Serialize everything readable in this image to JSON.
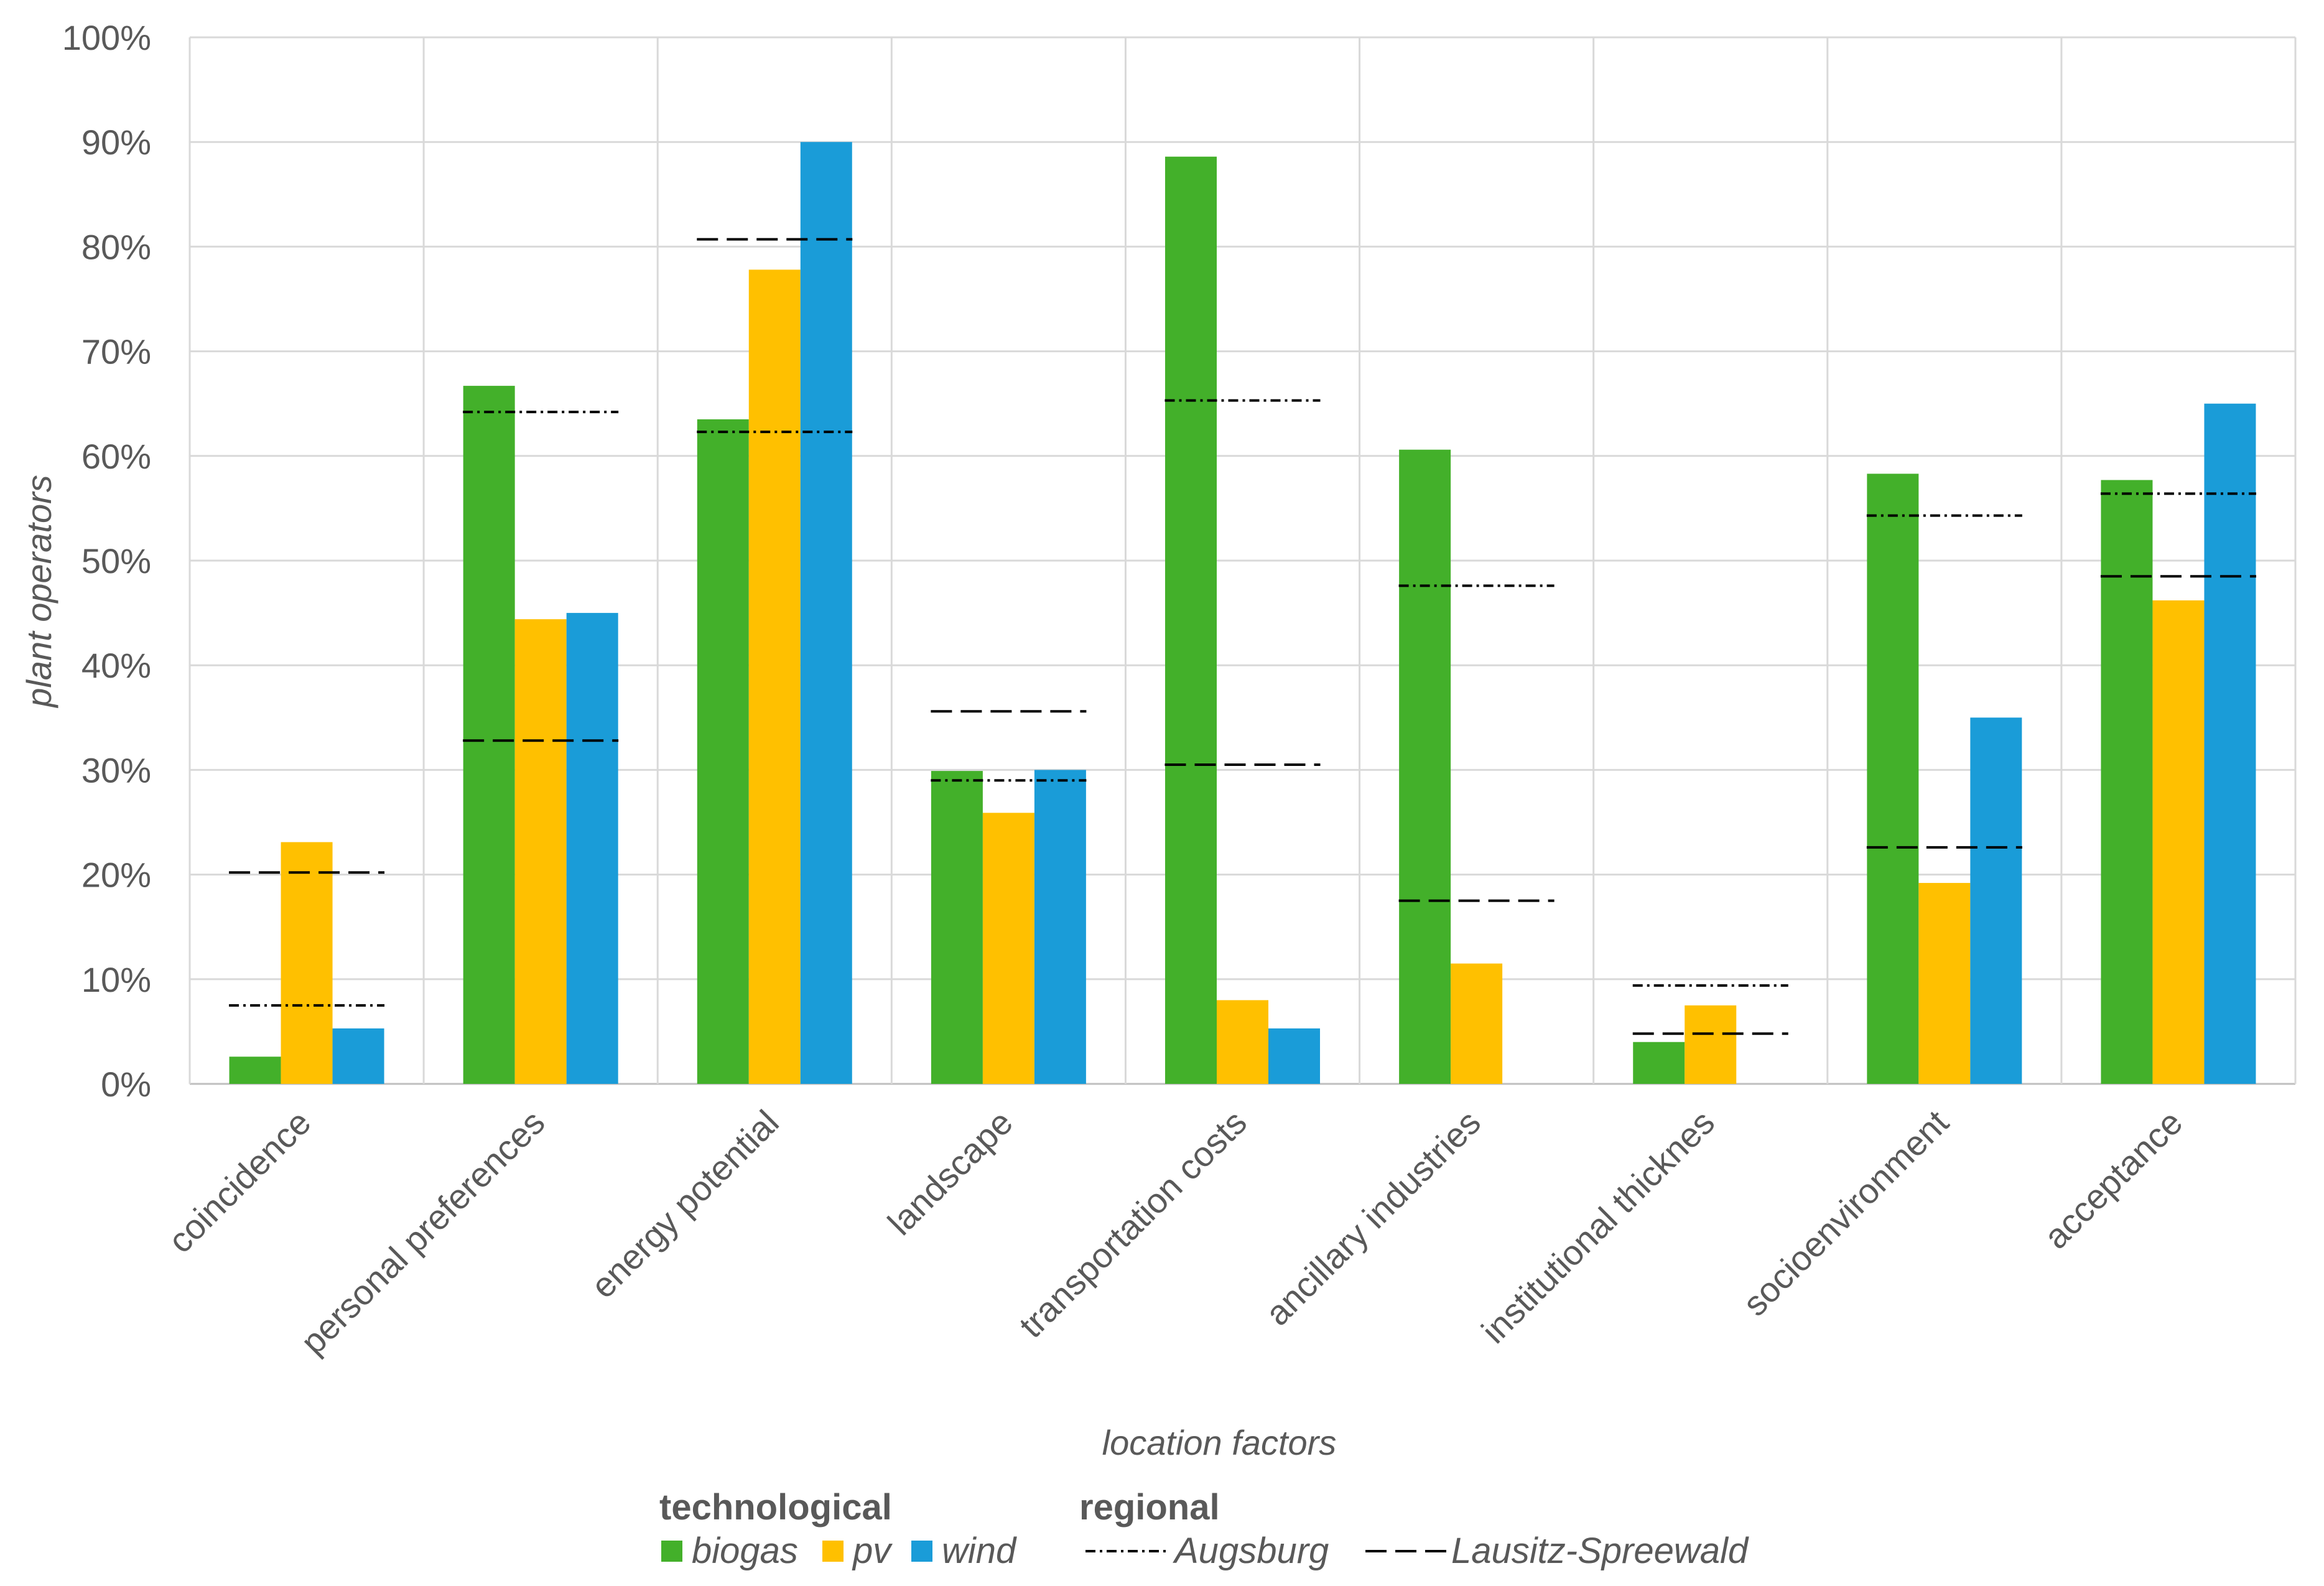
{
  "chart_data": {
    "type": "bar",
    "title": "",
    "xlabel": "location factors",
    "ylabel": "plant operators",
    "ylim": [
      0,
      100
    ],
    "yticks": [
      "0%",
      "10%",
      "20%",
      "30%",
      "40%",
      "50%",
      "60%",
      "70%",
      "80%",
      "90%",
      "100%"
    ],
    "grid": true,
    "categories": [
      "coincidence",
      "personal preferences",
      "energy potential",
      "landscape",
      "transportation costs",
      "ancillary industries",
      "institutional thicknes",
      "socioenvironment",
      "acceptance"
    ],
    "series": [
      {
        "name": "biogas",
        "color": "#43b02a",
        "values": [
          2.6,
          66.7,
          63.5,
          29.9,
          88.6,
          60.6,
          4.0,
          58.3,
          57.7
        ]
      },
      {
        "name": "pv",
        "color": "#ffc000",
        "values": [
          23.1,
          44.4,
          77.8,
          25.9,
          8.0,
          11.5,
          7.5,
          19.2,
          46.2
        ]
      },
      {
        "name": "wind",
        "color": "#1a9cd8",
        "values": [
          5.3,
          45.0,
          90.0,
          30.0,
          5.3,
          0,
          0,
          35.0,
          65.0
        ]
      }
    ],
    "regional_lines": [
      {
        "name": "Augsburg",
        "style": "dash-dot",
        "values": [
          7.5,
          64.2,
          62.3,
          29.0,
          65.3,
          47.6,
          9.4,
          54.3,
          56.4
        ]
      },
      {
        "name": "Lausitz-Spreewald",
        "style": "dashed",
        "values": [
          20.2,
          32.8,
          80.7,
          35.6,
          30.5,
          17.5,
          4.8,
          22.6,
          48.5
        ]
      }
    ],
    "legend": {
      "position": "bottom",
      "technological_heading": "technological",
      "regional_heading": "regional"
    }
  }
}
